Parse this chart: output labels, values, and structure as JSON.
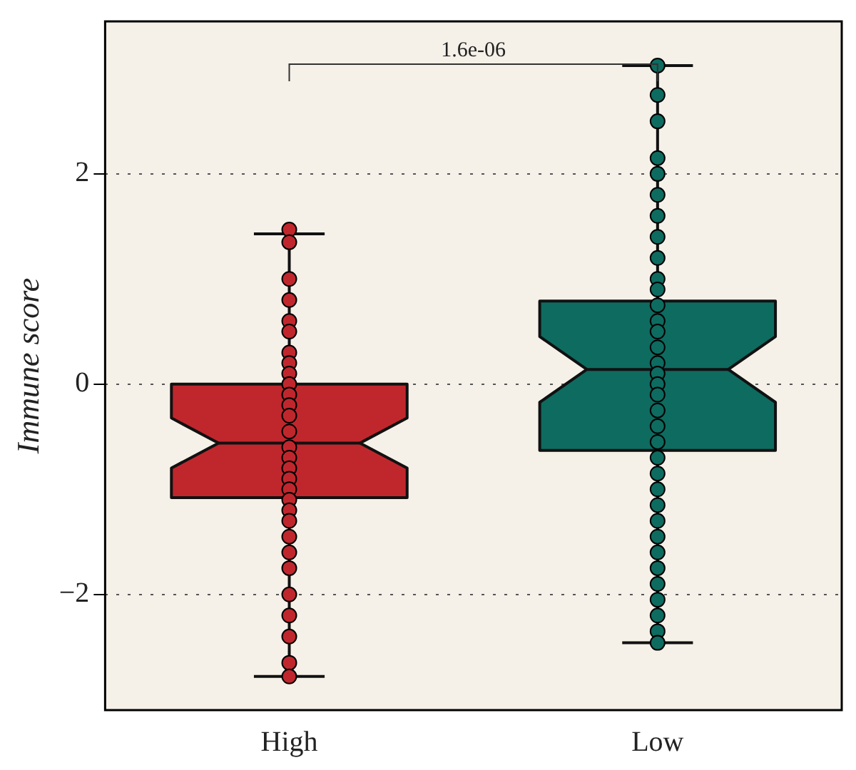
{
  "chart_data": {
    "type": "box",
    "categories": [
      "High",
      "Low"
    ],
    "ylabel": "Immune score",
    "colors": [
      "#c0272d",
      "#0e6b60"
    ],
    "boxes": [
      {
        "low": -2.78,
        "q1": -1.08,
        "median": -0.56,
        "q3": 0.0,
        "high": 1.43
      },
      {
        "low": -2.46,
        "q1": -0.63,
        "median": 0.14,
        "q3": 0.79,
        "high": 3.03
      }
    ],
    "ylim": [
      -3.1,
      3.45
    ],
    "yticks": [
      {
        "value": -2,
        "label": "−2"
      },
      0,
      2
    ],
    "grid": "y",
    "annotations": [
      "1.6e-06"
    ],
    "series": [
      {
        "type": "scatter",
        "color": "#c0272d",
        "x": [
          "High",
          "High",
          "High",
          "High",
          "High",
          "High",
          "High",
          "High",
          "High",
          "High",
          "High",
          "High",
          "High",
          "High",
          "High",
          "High",
          "High",
          "High",
          "High",
          "High",
          "High",
          "High",
          "High",
          "High",
          "High",
          "High",
          "High",
          "High",
          "High",
          "High"
        ],
        "values": [
          1.47,
          1.35,
          1.0,
          0.8,
          0.6,
          0.5,
          0.3,
          0.2,
          0.1,
          0.0,
          -0.1,
          -0.2,
          -0.3,
          -0.45,
          -0.6,
          -0.7,
          -0.8,
          -0.9,
          -1.0,
          -1.1,
          -1.2,
          -1.3,
          -1.45,
          -1.6,
          -1.75,
          -2.0,
          -2.2,
          -2.4,
          -2.65,
          -2.78
        ]
      },
      {
        "type": "scatter",
        "color": "#0e6b60",
        "x": [
          "Low",
          "Low",
          "Low",
          "Low",
          "Low",
          "Low",
          "Low",
          "Low",
          "Low",
          "Low",
          "Low",
          "Low",
          "Low",
          "Low",
          "Low",
          "Low",
          "Low",
          "Low",
          "Low",
          "Low",
          "Low",
          "Low",
          "Low",
          "Low",
          "Low",
          "Low",
          "Low",
          "Low",
          "Low",
          "Low",
          "Low",
          "Low",
          "Low",
          "Low",
          "Low"
        ],
        "values": [
          3.03,
          2.75,
          2.5,
          2.15,
          2.0,
          1.8,
          1.6,
          1.4,
          1.2,
          1.0,
          0.9,
          0.75,
          0.6,
          0.5,
          0.35,
          0.2,
          0.1,
          0.0,
          -0.1,
          -0.25,
          -0.4,
          -0.55,
          -0.7,
          -0.85,
          -1.0,
          -1.15,
          -1.3,
          -1.45,
          -1.6,
          -1.75,
          -1.9,
          -2.05,
          -2.2,
          -2.35,
          -2.46
        ]
      }
    ]
  }
}
